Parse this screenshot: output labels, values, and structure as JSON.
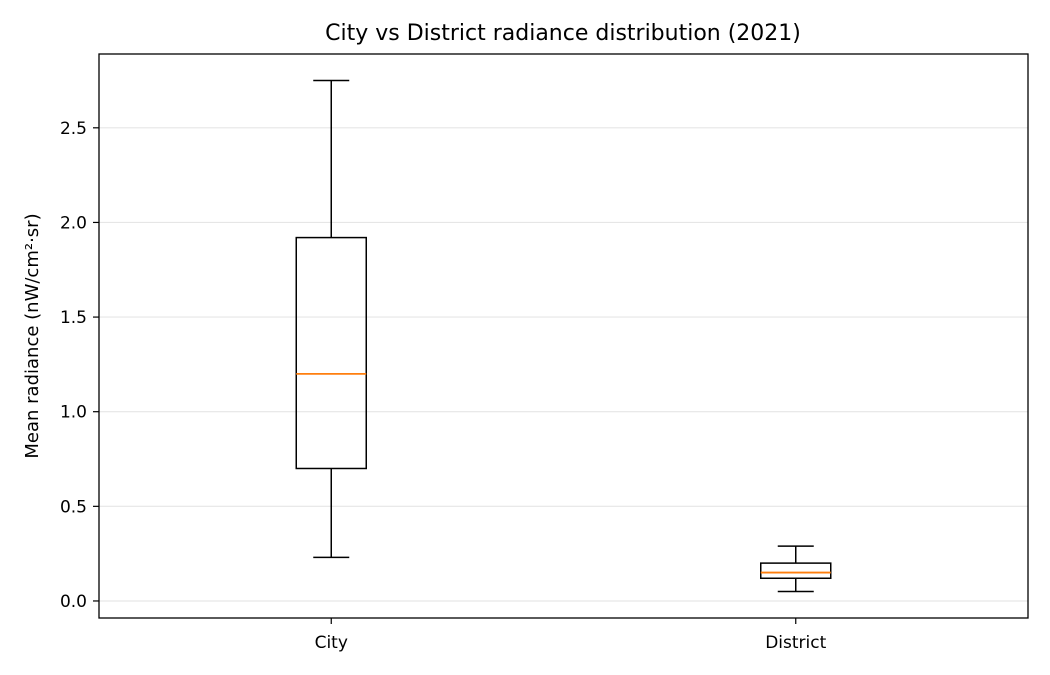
{
  "chart_data": {
    "type": "box",
    "title": "City vs District radiance distribution (2021)",
    "xlabel": "",
    "ylabel": "Mean radiance (nW/cm²·sr)",
    "categories": [
      "City",
      "District"
    ],
    "boxes": [
      {
        "category": "City",
        "whisker_low": 0.23,
        "q1": 0.7,
        "median": 1.2,
        "q3": 1.92,
        "whisker_high": 2.75
      },
      {
        "category": "District",
        "whisker_low": 0.05,
        "q1": 0.12,
        "median": 0.15,
        "q3": 0.2,
        "whisker_high": 0.29
      }
    ],
    "ylim": [
      -0.09,
      2.89
    ],
    "yticks": [
      0.0,
      0.5,
      1.0,
      1.5,
      2.0,
      2.5
    ],
    "ytick_labels": [
      "0.0",
      "0.5",
      "1.0",
      "1.5",
      "2.0",
      "2.5"
    ],
    "grid": "y",
    "colors": {
      "box_edge": "#000000",
      "median": "#ff7f0e",
      "grid": "#e6e6e6"
    }
  }
}
